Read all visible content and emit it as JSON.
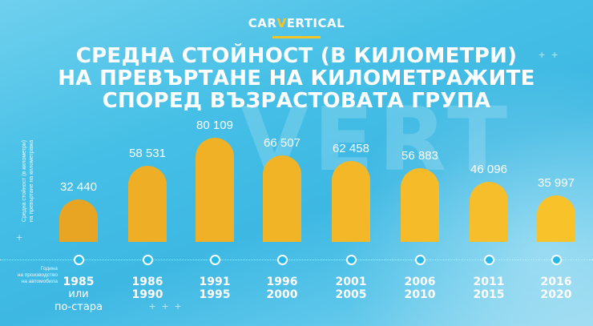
{
  "brand": {
    "pre": "CAR",
    "v": "V",
    "post": "ERTICAL",
    "accent": "#f7c325"
  },
  "title": {
    "line1": "СРЕДНА СТОЙНОСТ (В КИЛОМЕТРИ)",
    "line2": "НА ПРЕВЪРТАНЕ НА КИЛОМЕТРАЖИТЕ",
    "line3": "СПОРЕД ВЪЗРАСТОВАТА ГРУПА"
  },
  "axis": {
    "ylabel_line1": "Средна стойност (в километри)",
    "ylabel_line2": "на превъртане на километража",
    "xlabel_line1": "Година",
    "xlabel_line2": "на производство",
    "xlabel_line3": "на автомобила"
  },
  "groups": [
    {
      "label1": "1985",
      "label2": "или",
      "label3": "по-стара",
      "value_text": "32 440"
    },
    {
      "label1": "1986",
      "label2": "1990",
      "value_text": "58 531"
    },
    {
      "label1": "1991",
      "label2": "1995",
      "value_text": "80 109"
    },
    {
      "label1": "1996",
      "label2": "2000",
      "value_text": "66 507"
    },
    {
      "label1": "2001",
      "label2": "2005",
      "value_text": "62 458"
    },
    {
      "label1": "2006",
      "label2": "2010",
      "value_text": "56 883"
    },
    {
      "label1": "2011",
      "label2": "2015",
      "value_text": "46 096"
    },
    {
      "label1": "2016",
      "label2": "2020",
      "value_text": "35 997"
    }
  ],
  "chart_data": {
    "type": "bar",
    "title": "Средна стойност (в километри) на превъртане на километражите според възрастовата група",
    "xlabel": "Година на производство на автомобила",
    "ylabel": "Средна стойност (в километри) на превъртане на километража",
    "categories": [
      "1985 или по-стара",
      "1986-1990",
      "1991-1995",
      "1996-2000",
      "2001-2005",
      "2006-2010",
      "2011-2015",
      "2016-2020"
    ],
    "values": [
      32440,
      58531,
      80109,
      66507,
      62458,
      56883,
      46096,
      35997
    ],
    "grid": false,
    "legend": null,
    "colors": [
      "#e8a524",
      "#eeae25",
      "#f0b126",
      "#f1b427",
      "#f3b728",
      "#f5bb29",
      "#f6be2a",
      "#f8c22b"
    ]
  }
}
